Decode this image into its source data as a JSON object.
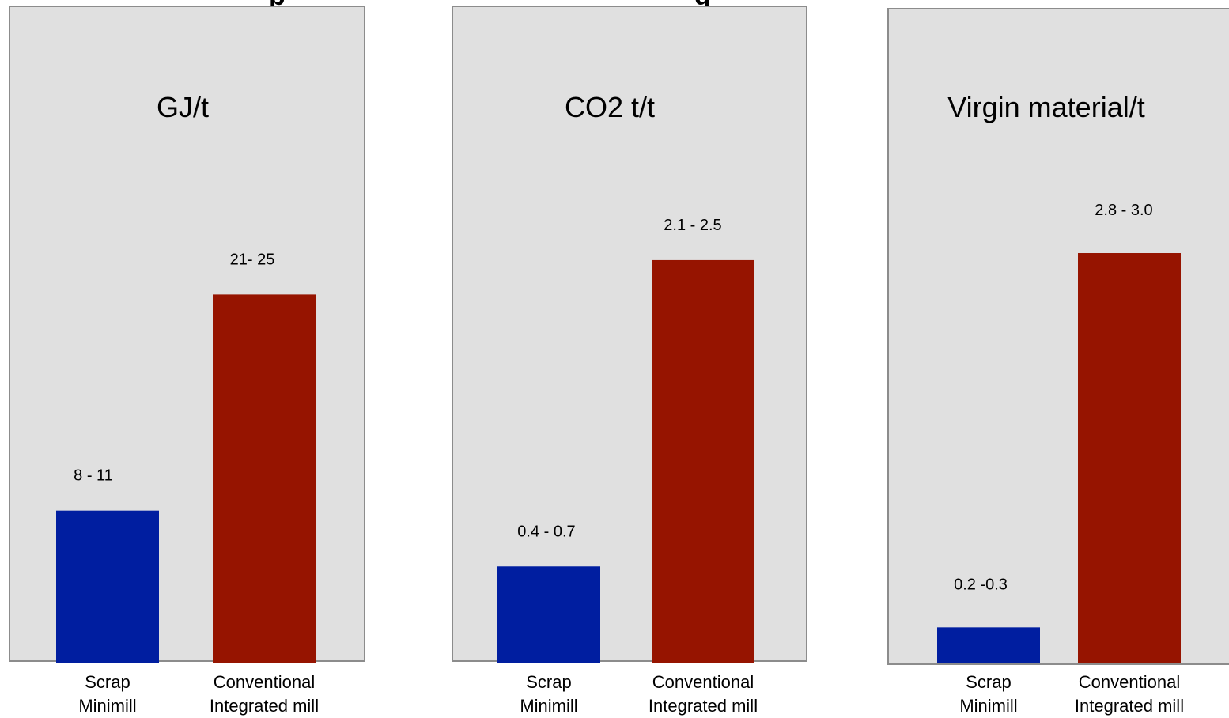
{
  "chart_data": [
    {
      "type": "bar",
      "title": "GJ/t",
      "categories": [
        "Scrap Minimill",
        "Conventional Integrated mill"
      ],
      "category_lines": [
        [
          "Scrap",
          "Minimill"
        ],
        [
          "Conventional",
          "Integrated mill"
        ]
      ],
      "values": [
        9.5,
        23
      ],
      "value_labels": [
        "8 - 11",
        "21- 25"
      ],
      "ylim": [
        0,
        41
      ],
      "colors": [
        "#001ea0",
        "#961400"
      ]
    },
    {
      "type": "bar",
      "title": "CO2 t/t",
      "categories": [
        "Scrap Minimill",
        "Conventional Integrated mill"
      ],
      "category_lines": [
        [
          "Scrap",
          "Minimill"
        ],
        [
          "Conventional",
          "Integrated mill"
        ]
      ],
      "values": [
        0.55,
        2.3
      ],
      "value_labels": [
        "0.4 - 0.7",
        "2.1 - 2.5"
      ],
      "ylim": [
        0,
        3.75
      ],
      "colors": [
        "#001ea0",
        "#961400"
      ]
    },
    {
      "type": "bar",
      "title": "Virgin material/t",
      "categories": [
        "Scrap Minimill",
        "Conventional Integrated mill"
      ],
      "category_lines": [
        [
          "Scrap",
          "Minimill"
        ],
        [
          "Conventional",
          "Integrated mill"
        ]
      ],
      "values": [
        0.25,
        2.9
      ],
      "value_labels": [
        "0.2 -0.3",
        "2.8 - 3.0"
      ],
      "ylim": [
        0,
        4.63
      ],
      "colors": [
        "#001ea0",
        "#961400"
      ]
    }
  ]
}
